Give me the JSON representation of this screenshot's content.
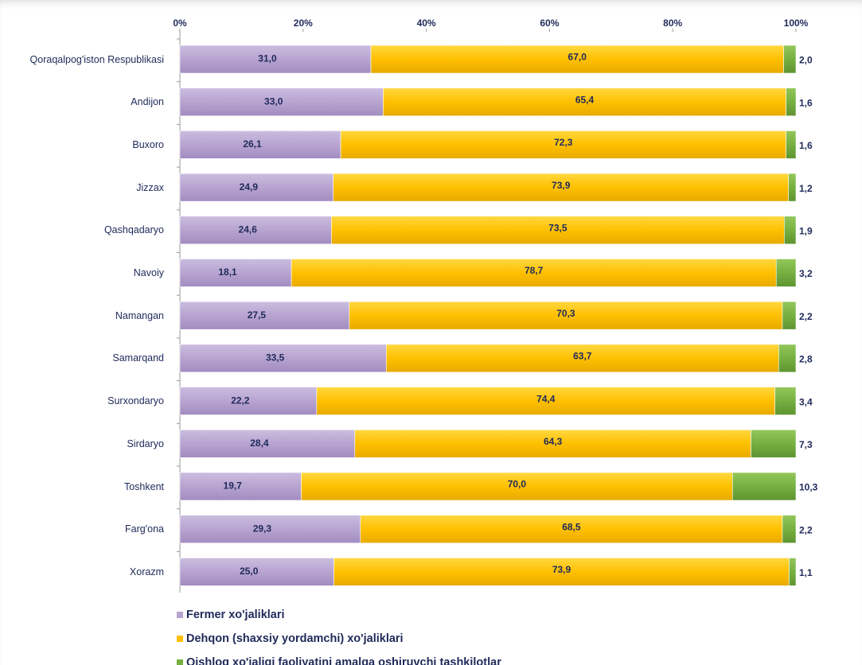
{
  "chart_data": {
    "type": "stacked-bar-horizontal",
    "categories": [
      "Qoraqalpog'iston Respublikasi",
      "Andijon",
      "Buxoro",
      "Jizzax",
      "Qashqadaryo",
      "Navoiy",
      "Namangan",
      "Samarqand",
      "Surxondaryo",
      "Sirdaryo",
      "Toshkent",
      "Farg'ona",
      "Xorazm"
    ],
    "series": [
      {
        "name": "Fermer xo'jaliklari",
        "color": "#b7a4d0",
        "values": [
          31.0,
          33.0,
          26.1,
          24.9,
          24.6,
          18.1,
          27.5,
          33.5,
          22.2,
          28.4,
          19.7,
          29.3,
          25.0
        ],
        "value_labels": [
          "31,0",
          "33,0",
          "26,1",
          "24,9",
          "24,6",
          "18,1",
          "27,5",
          "33,5",
          "22,2",
          "28,4",
          "19,7",
          "29,3",
          "25,0"
        ]
      },
      {
        "name": "Dehqon (shaxsiy yordamchi) xo'jaliklari",
        "color": "#ffc000",
        "values": [
          67.0,
          65.4,
          72.3,
          73.9,
          73.5,
          78.7,
          70.3,
          63.7,
          74.4,
          64.3,
          70.0,
          68.5,
          73.9
        ],
        "value_labels": [
          "67,0",
          "65,4",
          "72,3",
          "73,9",
          "73,5",
          "78,7",
          "70,3",
          "63,7",
          "74,4",
          "64,3",
          "70,0",
          "68,5",
          "73,9"
        ]
      },
      {
        "name": "Qishloq xo'jaligi faoliyatini amalga oshiruvchi tashkilotlar",
        "color": "#76b041",
        "values": [
          2.0,
          1.6,
          1.6,
          1.2,
          1.9,
          3.2,
          2.2,
          2.8,
          3.4,
          7.3,
          10.3,
          2.2,
          1.1
        ],
        "value_labels": [
          "2,0",
          "1,6",
          "1,6",
          "1,2",
          "1,9",
          "3,2",
          "2,2",
          "2,8",
          "3,4",
          "7,3",
          "10,3",
          "2,2",
          "1,1"
        ]
      }
    ],
    "xlim": [
      0,
      100
    ],
    "xticks": [
      {
        "value": 0,
        "label": "0%"
      },
      {
        "value": 20,
        "label": "20%"
      },
      {
        "value": 40,
        "label": "40%"
      },
      {
        "value": 60,
        "label": "60%"
      },
      {
        "value": 80,
        "label": "80%"
      },
      {
        "value": 100,
        "label": "100%"
      }
    ]
  }
}
